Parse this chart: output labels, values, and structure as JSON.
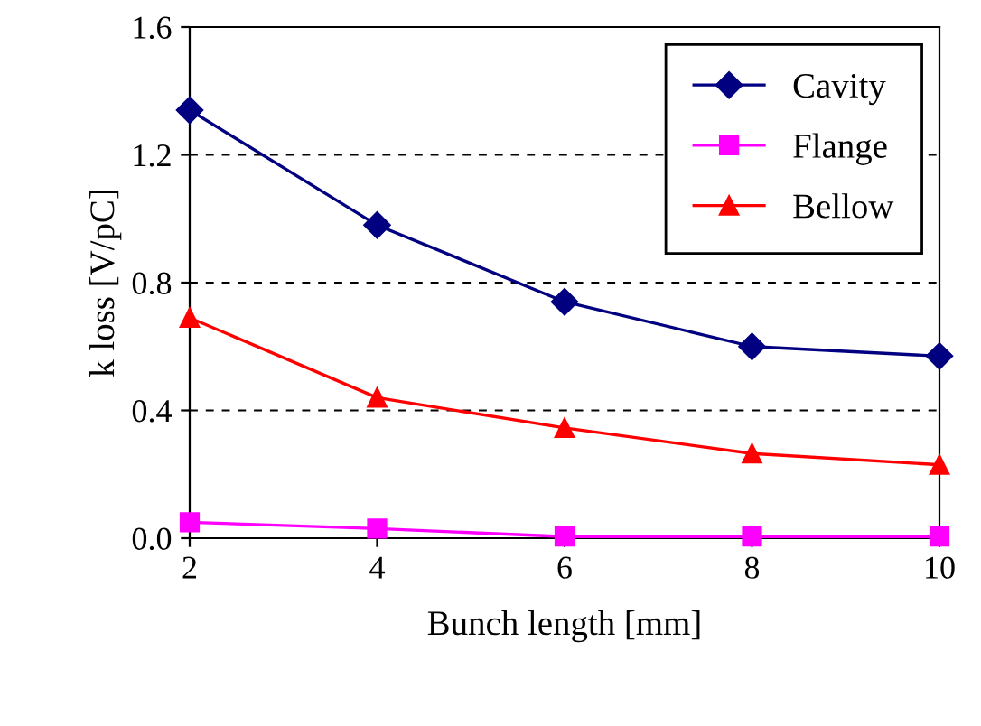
{
  "chart_data": {
    "type": "line",
    "xlabel": "Bunch length [mm]",
    "ylabel": "k loss [V/pC]",
    "x": [
      2,
      4,
      6,
      8,
      10
    ],
    "series": [
      {
        "name": "Cavity",
        "color": "#000080",
        "marker": "diamond",
        "values": [
          1.34,
          0.98,
          0.74,
          0.6,
          0.57
        ]
      },
      {
        "name": "Flange",
        "color": "#ff00ff",
        "marker": "square",
        "values": [
          0.05,
          0.03,
          0.005,
          0.005,
          0.005
        ]
      },
      {
        "name": "Bellow",
        "color": "#ff0000",
        "marker": "triangle",
        "values": [
          0.69,
          0.44,
          0.345,
          0.265,
          0.23
        ]
      }
    ],
    "xlim": [
      2,
      10
    ],
    "xticks": [
      2,
      4,
      6,
      8,
      10
    ],
    "ylim": [
      0,
      1.6
    ],
    "yticks": [
      {
        "value": 0,
        "label": "0.0"
      },
      {
        "value": 0.4,
        "label": "0.4"
      },
      {
        "value": 0.8,
        "label": "0.8"
      },
      {
        "value": 1.2,
        "label": "1.2"
      },
      {
        "value": 1.6,
        "label": "1.6"
      }
    ],
    "grid": "y",
    "legend": "top right",
    "line_style": "solid"
  }
}
